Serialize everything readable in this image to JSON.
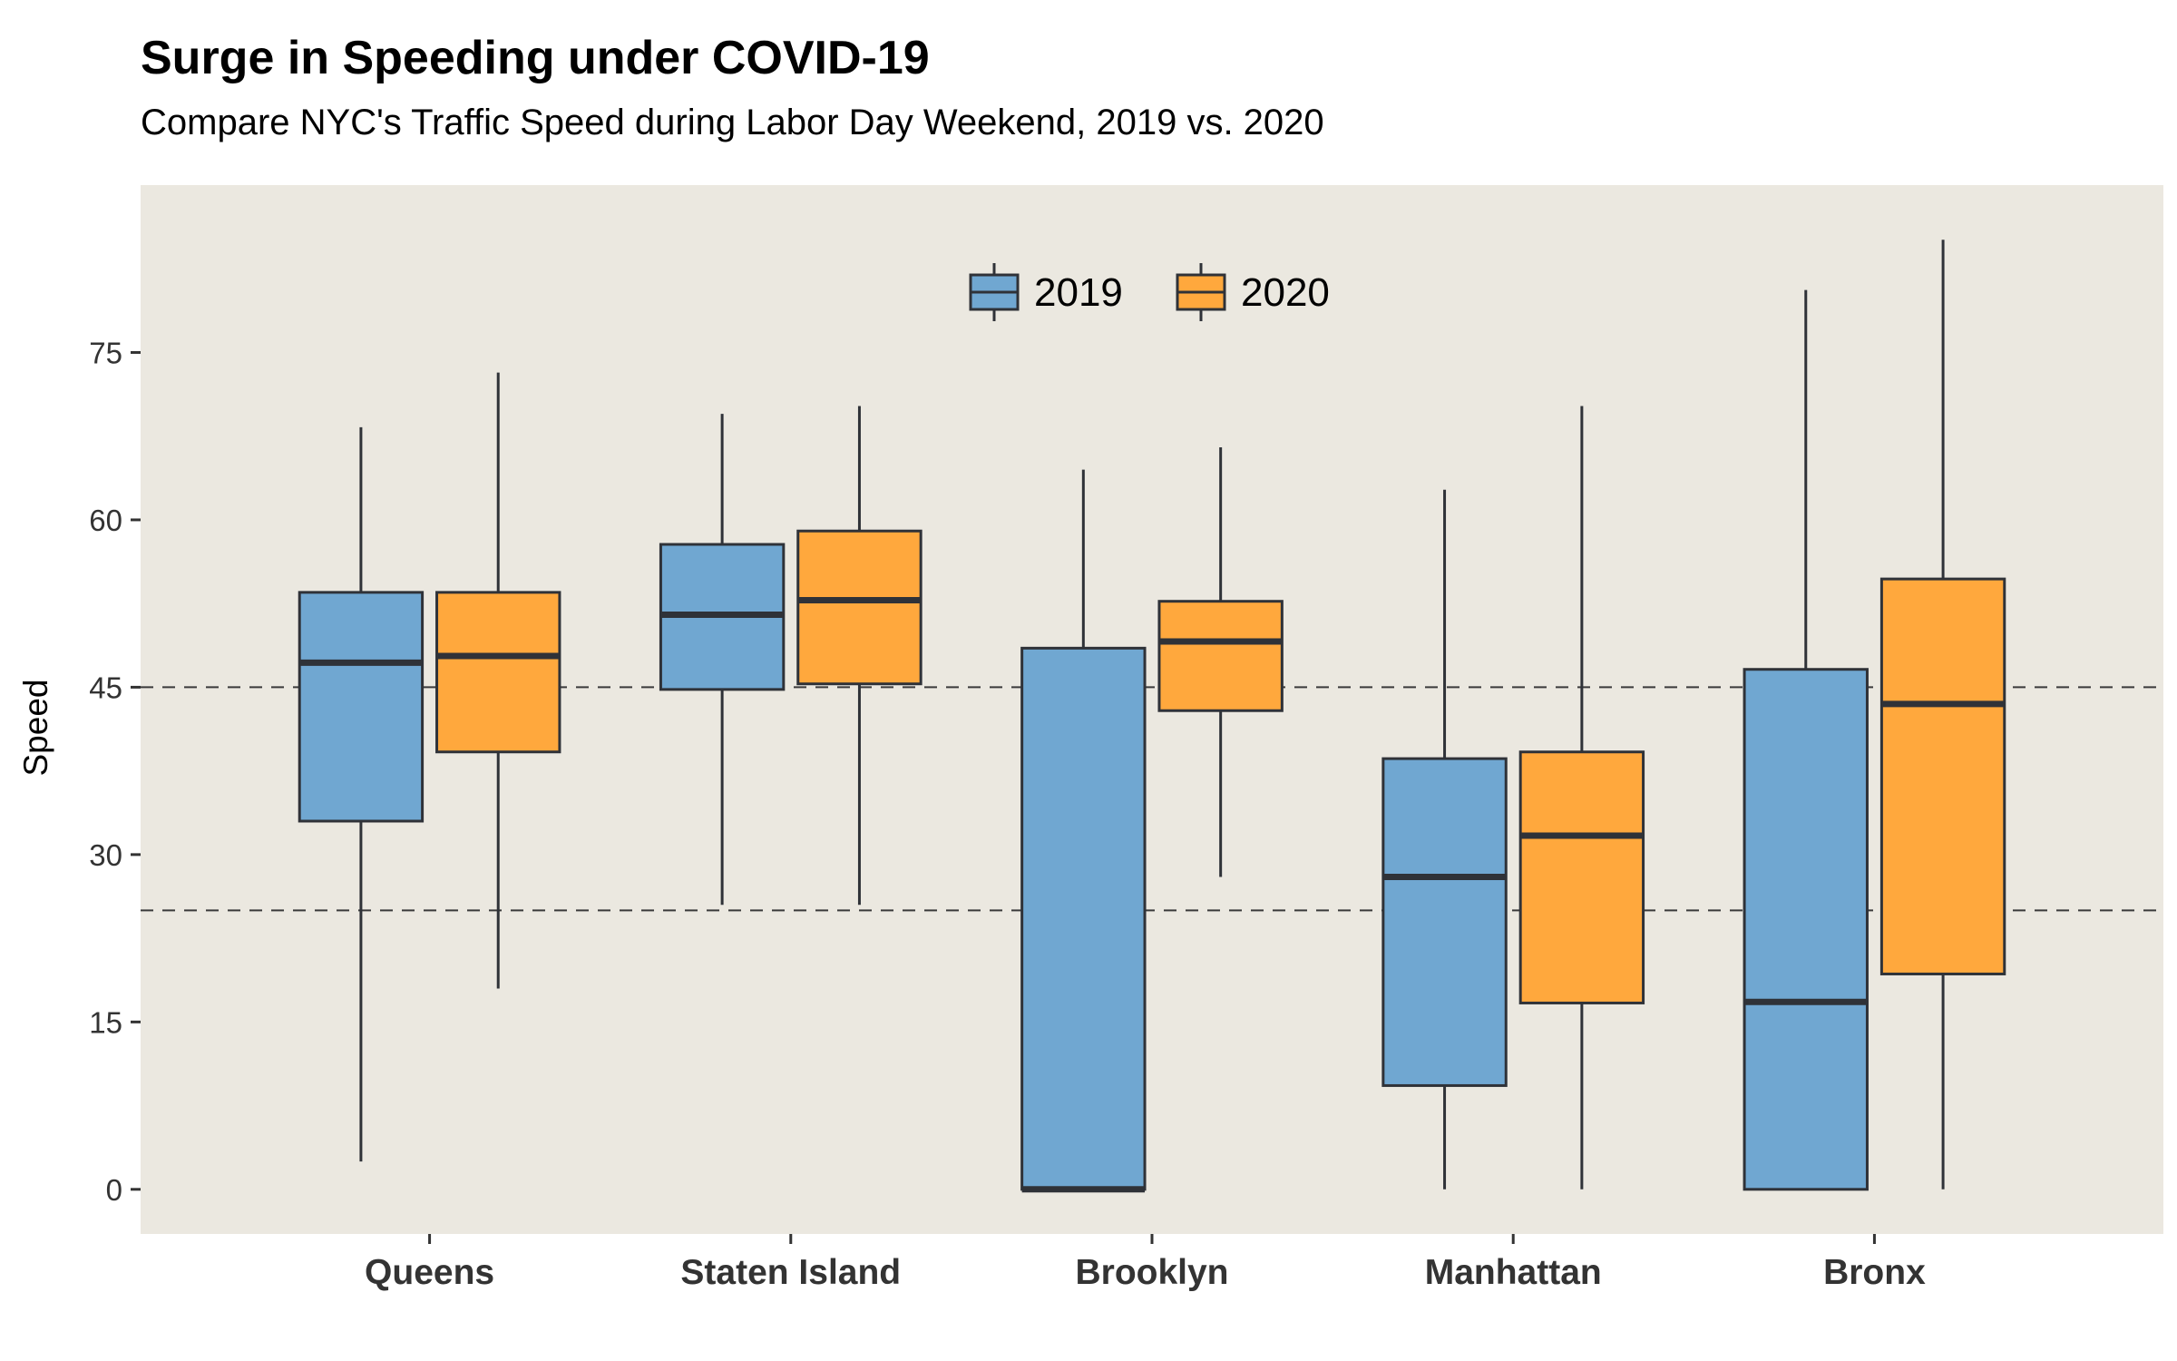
{
  "chart_data": {
    "type": "boxplot",
    "title": "Surge in Speeding under COVID-19",
    "subtitle": "Compare NYC's Traffic Speed during Labor Day Weekend, 2019 vs. 2020",
    "xlabel": "",
    "ylabel": "Speed",
    "ylim": [
      -4,
      90
    ],
    "yticks": [
      0,
      15,
      30,
      45,
      60,
      75
    ],
    "reference_lines": [
      25,
      45
    ],
    "grid": false,
    "legend_position": "top-center",
    "panel_color": "#EBE8E0",
    "categories": [
      "Queens",
      "Staten Island",
      "Brooklyn",
      "Manhattan",
      "Bronx"
    ],
    "series": [
      {
        "name": "2019",
        "color": "#70A7D1",
        "boxes": [
          {
            "min": 2.5,
            "q1": 33,
            "median": 47.2,
            "q3": 53.5,
            "max": 68.3
          },
          {
            "min": 25.5,
            "q1": 44.8,
            "median": 51.5,
            "q3": 57.8,
            "max": 69.5
          },
          {
            "min": 0,
            "q1": 0,
            "median": 0,
            "q3": 48.5,
            "max": 64.5
          },
          {
            "min": 0,
            "q1": 9.3,
            "median": 28,
            "q3": 38.6,
            "max": 62.7
          },
          {
            "min": 0,
            "q1": 0,
            "median": 16.8,
            "q3": 46.6,
            "max": 80.6
          }
        ]
      },
      {
        "name": "2020",
        "color": "#FFA83D",
        "boxes": [
          {
            "min": 18,
            "q1": 39.2,
            "median": 47.8,
            "q3": 53.5,
            "max": 73.2
          },
          {
            "min": 25.5,
            "q1": 45.3,
            "median": 52.8,
            "q3": 59,
            "max": 70.2
          },
          {
            "min": 28,
            "q1": 42.9,
            "median": 49.1,
            "q3": 52.7,
            "max": 66.5
          },
          {
            "min": 0,
            "q1": 16.7,
            "median": 31.7,
            "q3": 39.2,
            "max": 70.2
          },
          {
            "min": 0,
            "q1": 19.3,
            "median": 43.5,
            "q3": 54.7,
            "max": 85.1
          }
        ]
      }
    ]
  }
}
